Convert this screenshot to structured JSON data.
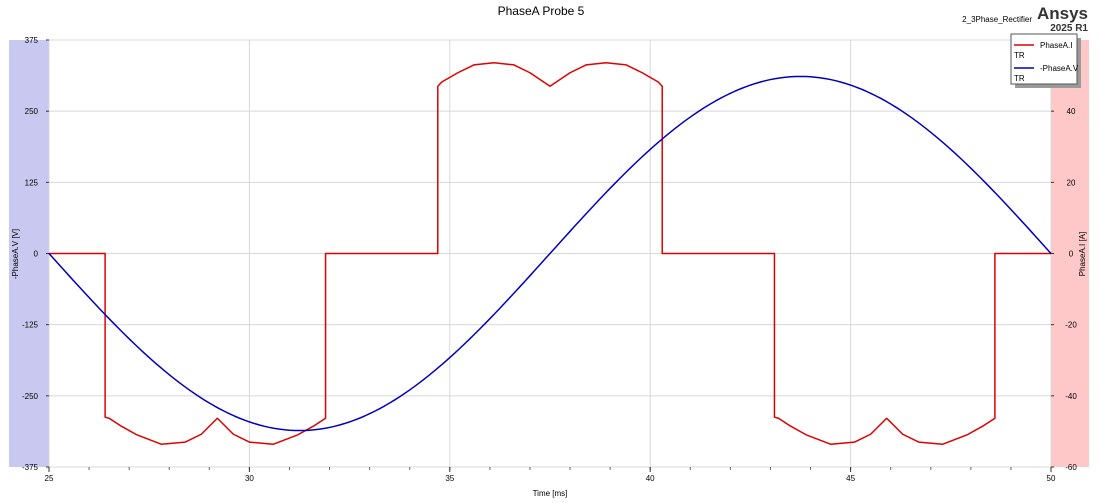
{
  "header": {
    "title": "PhaseA Probe 5",
    "design_name": "2_3Phase_Rectifier",
    "brand": "Ansys",
    "version": "2025 R1"
  },
  "legend": {
    "items": [
      {
        "label": "PhaseA.I",
        "sublabel": "TR",
        "color": "#e00000"
      },
      {
        "label": "-PhaseA.V",
        "sublabel": "TR",
        "color": "#0000c0"
      }
    ]
  },
  "chart_data": {
    "type": "line",
    "title": "PhaseA Probe 5",
    "xlabel": "Time [ms]",
    "ylabel_left": "-PhaseA.V [V]",
    "ylabel_right": "PhaseA.I [A]",
    "xlim": [
      25,
      50
    ],
    "ylim_left": [
      -375,
      375
    ],
    "ylim_right": [
      -60,
      60
    ],
    "x_ticks": [
      "25",
      "30",
      "35",
      "40",
      "45",
      "50"
    ],
    "y_left_ticks": [
      "375",
      "250",
      "125",
      "0",
      "-125",
      "-250",
      "-375"
    ],
    "y_right_ticks": [
      "40",
      "20",
      "0",
      "-20",
      "-40",
      "-60"
    ],
    "grid": true,
    "legend_position": "top-right",
    "colors": {
      "left_axis_band": "#c8c8f0",
      "right_axis_band": "#ffc8c8",
      "grid": "#d8d8d8"
    },
    "series": [
      {
        "name": "PhaseA.I",
        "axis": "right",
        "color": "#e00000",
        "x": [
          25.0,
          26.4,
          26.4,
          26.5,
          26.8,
          27.2,
          27.8,
          28.4,
          28.8,
          29.2,
          29.6,
          30.0,
          30.6,
          31.2,
          31.6,
          31.9,
          31.9,
          32.0,
          34.7,
          34.7,
          34.8,
          35.2,
          35.6,
          36.1,
          36.6,
          37.0,
          37.5,
          38.0,
          38.4,
          38.9,
          39.4,
          39.8,
          40.2,
          40.3,
          40.3,
          40.5,
          43.1,
          43.1,
          43.2,
          43.5,
          43.9,
          44.5,
          45.1,
          45.5,
          45.9,
          46.3,
          46.7,
          47.3,
          47.9,
          48.3,
          48.6,
          48.6,
          48.7,
          50.0
        ],
        "y": [
          0,
          0,
          -46,
          -46.3,
          -48.5,
          -51.0,
          -53.6,
          -53.0,
          -50.8,
          -46.3,
          -50.8,
          -53.0,
          -53.6,
          -51.0,
          -48.5,
          -46.3,
          0,
          0,
          0,
          47,
          48.2,
          50.8,
          53.0,
          53.6,
          53.0,
          50.8,
          47.0,
          50.8,
          53.0,
          53.6,
          53.0,
          50.8,
          48.2,
          47,
          0,
          0,
          0,
          -46,
          -46.3,
          -48.5,
          -51.0,
          -53.6,
          -53.0,
          -50.8,
          -46.3,
          -50.8,
          -53.0,
          -53.6,
          -51.0,
          -48.5,
          -46.3,
          0,
          0,
          0
        ]
      },
      {
        "name": "-PhaseA.V",
        "axis": "left",
        "color": "#0000c0",
        "function": "sine",
        "amplitude": -311,
        "period_ms": 25,
        "phase_start_ms": 25,
        "samples": 200
      }
    ]
  }
}
